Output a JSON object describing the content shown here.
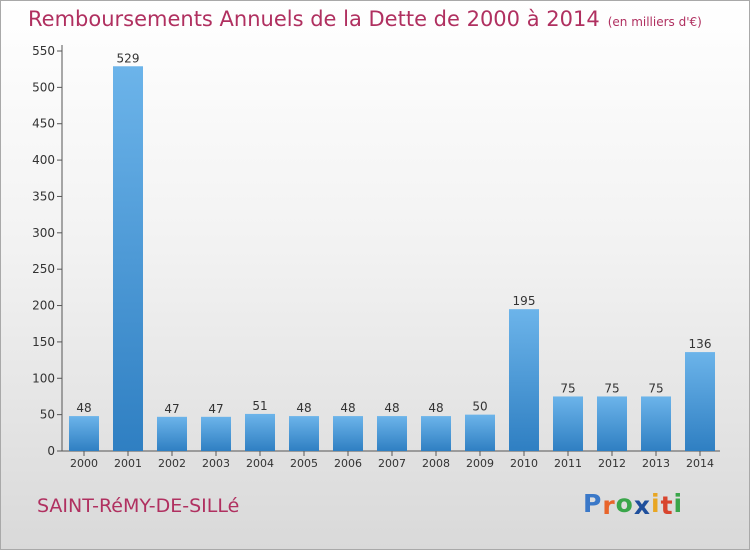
{
  "title": "Remboursements Annuels de la Dette de 2000 à 2014",
  "unit": "(en milliers d'€)",
  "town": "SAINT-RéMY-DE-SILLé",
  "logo": {
    "letters": [
      "P",
      "r",
      "o",
      "x",
      "i",
      "t",
      "i"
    ],
    "colors": [
      "#3a78c8",
      "#e8642a",
      "#3aa64a",
      "#1f4f9c",
      "#e8a623",
      "#d8452e",
      "#3aa64a"
    ]
  },
  "colors": {
    "bar_light": "#6cb4ea",
    "bar_dark": "#2f7fc2",
    "title": "#b03060"
  },
  "chart_data": {
    "type": "bar",
    "categories": [
      "2000",
      "2001",
      "2002",
      "2003",
      "2004",
      "2005",
      "2006",
      "2007",
      "2008",
      "2009",
      "2010",
      "2011",
      "2012",
      "2013",
      "2014"
    ],
    "values": [
      48,
      529,
      47,
      47,
      51,
      48,
      48,
      48,
      48,
      50,
      195,
      75,
      75,
      75,
      136
    ],
    "data_labels": [
      "48",
      "529",
      "47",
      "47",
      "51",
      "48",
      "48",
      "48",
      "48",
      "50",
      "195",
      "75",
      "75",
      "75",
      "136"
    ],
    "yticks": [
      "0",
      "50",
      "100",
      "150",
      "200",
      "250",
      "300",
      "350",
      "400",
      "450",
      "500",
      "550"
    ],
    "ylim": [
      0,
      550
    ],
    "grid": false,
    "legend": "none"
  }
}
